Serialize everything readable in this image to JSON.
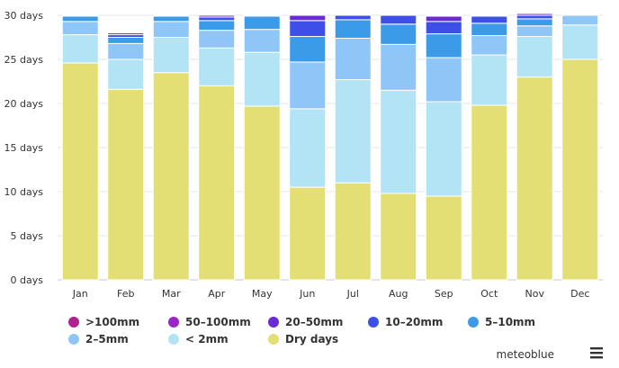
{
  "chart_data": {
    "type": "bar",
    "stacked": true,
    "categories": [
      "Jan",
      "Feb",
      "Mar",
      "Apr",
      "May",
      "Jun",
      "Jul",
      "Aug",
      "Sep",
      "Oct",
      "Nov",
      "Dec"
    ],
    "ylim": [
      0,
      30
    ],
    "yticks": [
      0,
      5,
      10,
      15,
      20,
      25,
      30
    ],
    "ytick_suffix": " days",
    "grid": true,
    "legend_position": "bottom",
    "series": [
      {
        "name": "Dry days",
        "color": "#e3df74",
        "values": [
          24.6,
          21.6,
          23.5,
          22.0,
          19.7,
          10.5,
          11.0,
          9.8,
          9.5,
          19.8,
          23.0,
          25.0
        ]
      },
      {
        "name": "< 2mm",
        "color": "#b2e4f6",
        "values": [
          3.2,
          3.4,
          4.0,
          4.3,
          6.1,
          8.9,
          11.7,
          11.7,
          10.7,
          5.7,
          4.6,
          3.9
        ]
      },
      {
        "name": "2–5mm",
        "color": "#8ec6f7",
        "values": [
          1.5,
          1.8,
          1.8,
          2.0,
          2.6,
          5.3,
          4.7,
          5.2,
          5.0,
          2.2,
          1.2,
          1.1
        ]
      },
      {
        "name": "5–10mm",
        "color": "#3c9be8",
        "values": [
          0.6,
          0.7,
          0.6,
          1.1,
          1.5,
          2.9,
          2.1,
          2.3,
          2.7,
          1.4,
          0.8,
          0.0
        ]
      },
      {
        "name": "10–20mm",
        "color": "#3d4fe6",
        "values": [
          0.1,
          0.3,
          0.1,
          0.4,
          0.1,
          1.8,
          0.5,
          1.0,
          1.4,
          0.8,
          0.4,
          0.0
        ]
      },
      {
        "name": "20–50mm",
        "color": "#6a2bd3",
        "values": [
          0.0,
          0.2,
          0.0,
          0.2,
          0.0,
          0.6,
          0.0,
          0.0,
          0.6,
          0.1,
          0.2,
          0.0
        ]
      },
      {
        "name": "50–100mm",
        "color": "#9a25c6",
        "values": [
          0.0,
          0.0,
          0.0,
          0.0,
          0.0,
          0.0,
          0.0,
          0.0,
          0.1,
          0.0,
          0.0,
          0.0
        ]
      },
      {
        "name": ">100mm",
        "color": "#b0208f",
        "values": [
          0.0,
          0.0,
          0.0,
          0.0,
          0.0,
          0.0,
          0.0,
          0.0,
          0.0,
          0.0,
          0.0,
          0.0
        ]
      }
    ]
  },
  "legend_items": [
    {
      "label": ">100mm",
      "color": "#b0208f"
    },
    {
      "label": "50–100mm",
      "color": "#9a25c6"
    },
    {
      "label": "20–50mm",
      "color": "#6a2bd3"
    },
    {
      "label": "10–20mm",
      "color": "#3d4fe6"
    },
    {
      "label": "5–10mm",
      "color": "#3c9be8"
    },
    {
      "label": "2–5mm",
      "color": "#8ec6f7"
    },
    {
      "label": "< 2mm",
      "color": "#b2e4f6"
    },
    {
      "label": "Dry days",
      "color": "#e3df74"
    }
  ],
  "credit": "meteoblue",
  "menu_icon": "hamburger-menu-icon",
  "colors": {
    "grid": "#e6e6e6",
    "axis": "#c0c8d0",
    "text": "#333333"
  }
}
